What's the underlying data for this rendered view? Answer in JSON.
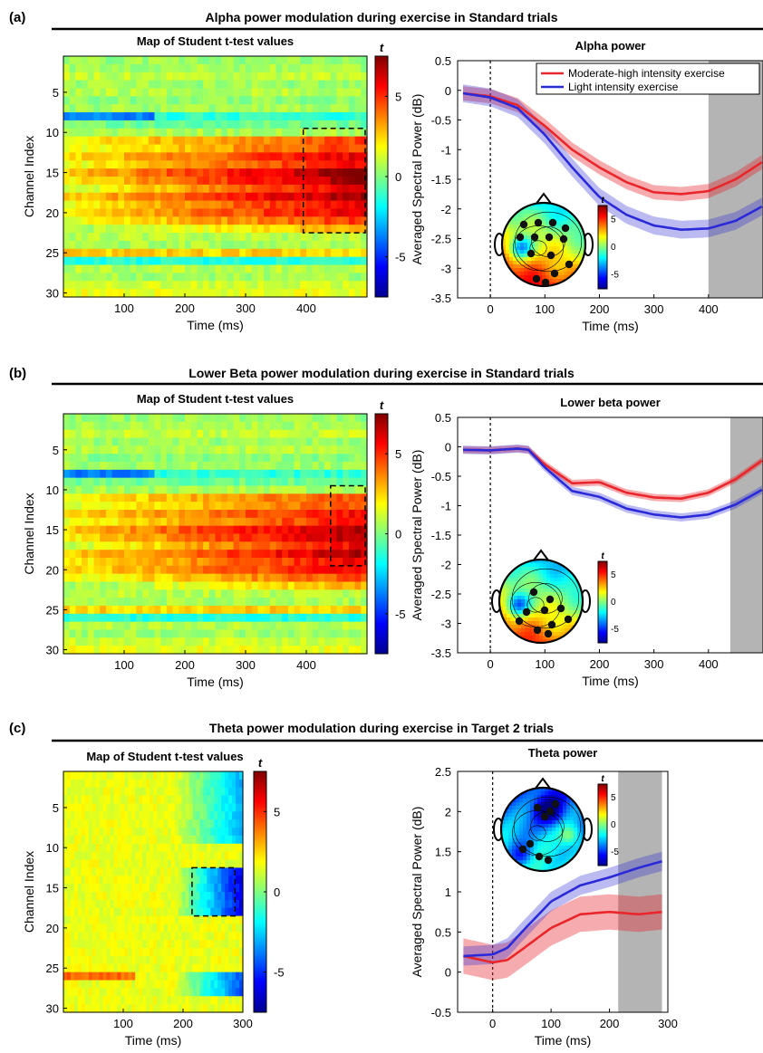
{
  "panels": [
    {
      "id": "a",
      "label": "(a)",
      "title": "Alpha power modulation during exercise in Standard trials",
      "heatmap": {
        "title": "Map of Student t-test values",
        "xlabel": "Time (ms)",
        "ylabel": "Channel Index",
        "xticks": [
          100,
          200,
          300,
          400
        ],
        "yticks": [
          5,
          10,
          15,
          20,
          25,
          30
        ],
        "xlim": [
          0,
          500
        ],
        "ylim": [
          1,
          30
        ],
        "colorbar_label": "t",
        "colorbar_ticks": [
          5,
          0,
          -5
        ],
        "box": {
          "time": [
            395,
            500
          ],
          "channels": [
            10,
            22
          ]
        }
      },
      "chart_data": {
        "type": "line",
        "title": "Alpha power",
        "xlabel": "Time (ms)",
        "ylabel": "Averaged Spectral Power (dB)",
        "xlim": [
          -60,
          500
        ],
        "ylim": [
          -3.5,
          0.5
        ],
        "xticks": [
          0,
          100,
          200,
          300,
          400
        ],
        "yticks": [
          0.5,
          0,
          -0.5,
          -1,
          -1.5,
          -2,
          -2.5,
          -3,
          -3.5
        ],
        "x": [
          -50,
          0,
          50,
          100,
          150,
          200,
          250,
          300,
          350,
          400,
          450,
          500
        ],
        "series": [
          {
            "name": "Moderate-high intensity exercise",
            "color": "#e8262b",
            "values": [
              -0.05,
              -0.1,
              -0.25,
              -0.6,
              -1.0,
              -1.3,
              -1.55,
              -1.72,
              -1.75,
              -1.7,
              -1.5,
              -1.2
            ]
          },
          {
            "name": "Light intensity exercise",
            "color": "#2a2ad8",
            "values": [
              -0.05,
              -0.12,
              -0.3,
              -0.75,
              -1.3,
              -1.8,
              -2.1,
              -2.28,
              -2.35,
              -2.33,
              -2.2,
              -1.95
            ]
          }
        ],
        "band_halfwidth": [
          0.12,
          0.15
        ],
        "legend": "top-right",
        "shaded_region": [
          400,
          500
        ],
        "topo_colorbar_ticks": [
          5,
          0,
          -5
        ],
        "topo_colorbar_label": "t"
      }
    },
    {
      "id": "b",
      "label": "(b)",
      "title": "Lower Beta power modulation during exercise in Standard trials",
      "heatmap": {
        "title": "Map of Student t-test values",
        "xlabel": "Time (ms)",
        "ylabel": "Channel Index",
        "xticks": [
          100,
          200,
          300,
          400
        ],
        "yticks": [
          5,
          10,
          15,
          20,
          25,
          30
        ],
        "xlim": [
          0,
          500
        ],
        "ylim": [
          1,
          30
        ],
        "colorbar_label": "t",
        "colorbar_ticks": [
          5,
          0,
          -5
        ],
        "box": {
          "time": [
            440,
            500
          ],
          "channels": [
            10,
            19
          ]
        }
      },
      "chart_data": {
        "type": "line",
        "title": "Lower beta power",
        "xlabel": "Time (ms)",
        "ylabel": "Averaged Spectral Power (dB)",
        "xlim": [
          -60,
          500
        ],
        "ylim": [
          -3.5,
          0.5
        ],
        "xticks": [
          0,
          100,
          200,
          300,
          400
        ],
        "yticks": [
          0.5,
          0,
          -0.5,
          -1,
          -1.5,
          -2,
          -2.5,
          -3,
          -3.5
        ],
        "x": [
          -50,
          0,
          50,
          70,
          100,
          150,
          200,
          250,
          300,
          350,
          400,
          450,
          500
        ],
        "series": [
          {
            "name": "Moderate-high intensity exercise",
            "color": "#e8262b",
            "values": [
              -0.05,
              -0.06,
              -0.03,
              -0.05,
              -0.3,
              -0.62,
              -0.6,
              -0.78,
              -0.86,
              -0.88,
              -0.78,
              -0.55,
              -0.22
            ]
          },
          {
            "name": "Light intensity exercise",
            "color": "#2a2ad8",
            "values": [
              -0.05,
              -0.06,
              -0.03,
              -0.05,
              -0.35,
              -0.75,
              -0.85,
              -1.05,
              -1.15,
              -1.2,
              -1.15,
              -0.98,
              -0.72
            ]
          }
        ],
        "band_halfwidth": [
          0.06,
          0.07
        ],
        "shaded_region": [
          440,
          500
        ],
        "topo_colorbar_ticks": [
          5,
          0,
          -5
        ],
        "topo_colorbar_label": "t"
      }
    },
    {
      "id": "c",
      "label": "(c)",
      "title": "Theta power modulation during exercise in Target 2 trials",
      "heatmap": {
        "title": "Map of Student t-test values",
        "xlabel": "Time (ms)",
        "ylabel": "Channel Index",
        "xticks": [
          100,
          200,
          300
        ],
        "yticks": [
          5,
          10,
          15,
          20,
          25,
          30
        ],
        "xlim": [
          0,
          300
        ],
        "ylim": [
          1,
          30
        ],
        "colorbar_label": "t",
        "colorbar_ticks": [
          5,
          0,
          -5
        ],
        "box": {
          "time": [
            215,
            290
          ],
          "channels": [
            13,
            18
          ]
        }
      },
      "chart_data": {
        "type": "line",
        "title": "Theta power",
        "xlabel": "Time (ms)",
        "ylabel": "Averaged Spectral Power (dB)",
        "xlim": [
          -60,
          300
        ],
        "ylim": [
          -0.5,
          2.5
        ],
        "xticks": [
          0,
          100,
          200,
          300
        ],
        "yticks": [
          2.5,
          2,
          1.5,
          1,
          0.5,
          0,
          -0.5
        ],
        "x": [
          -50,
          0,
          25,
          50,
          100,
          150,
          200,
          250,
          290
        ],
        "series": [
          {
            "name": "Moderate-high intensity exercise",
            "color": "#e8262b",
            "values": [
              0.2,
              0.12,
              0.15,
              0.28,
              0.55,
              0.72,
              0.75,
              0.72,
              0.75
            ]
          },
          {
            "name": "Light intensity exercise",
            "color": "#2a2ad8",
            "values": [
              0.2,
              0.22,
              0.3,
              0.5,
              0.88,
              1.08,
              1.18,
              1.3,
              1.38
            ]
          }
        ],
        "band_halfwidth": [
          0.22,
          0.12
        ],
        "shaded_region": [
          215,
          290
        ],
        "topo_colorbar_ticks": [
          5,
          0,
          -5
        ],
        "topo_colorbar_label": "t"
      }
    }
  ]
}
